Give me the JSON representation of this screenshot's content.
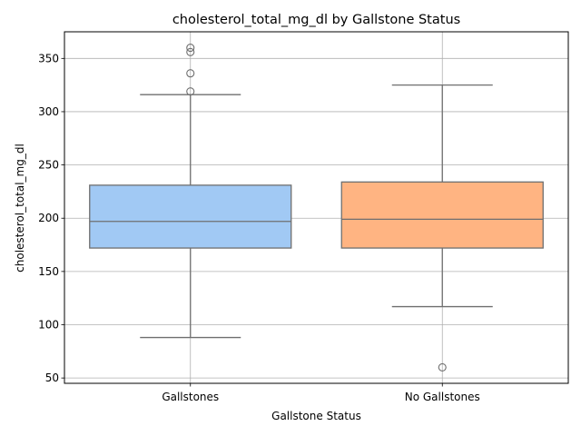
{
  "chart_data": {
    "type": "box",
    "title": "cholesterol_total_mg_dl by Gallstone Status",
    "xlabel": "Gallstone Status",
    "ylabel": "cholesterol_total_mg_dl",
    "ylim": [
      45,
      375
    ],
    "yticks": [
      50,
      100,
      150,
      200,
      250,
      300,
      350
    ],
    "grid": true,
    "categories": [
      "Gallstones",
      "No Gallstones"
    ],
    "boxes": [
      {
        "category": "Gallstones",
        "color": "#a1c9f4",
        "whisker_low": 88,
        "q1": 172,
        "median": 197,
        "q3": 231,
        "whisker_high": 316,
        "outliers": [
          319,
          336,
          356,
          360
        ]
      },
      {
        "category": "No Gallstones",
        "color": "#ffb482",
        "whisker_low": 117,
        "q1": 172,
        "median": 199,
        "q3": 234,
        "whisker_high": 325,
        "outliers": [
          60
        ]
      }
    ]
  }
}
